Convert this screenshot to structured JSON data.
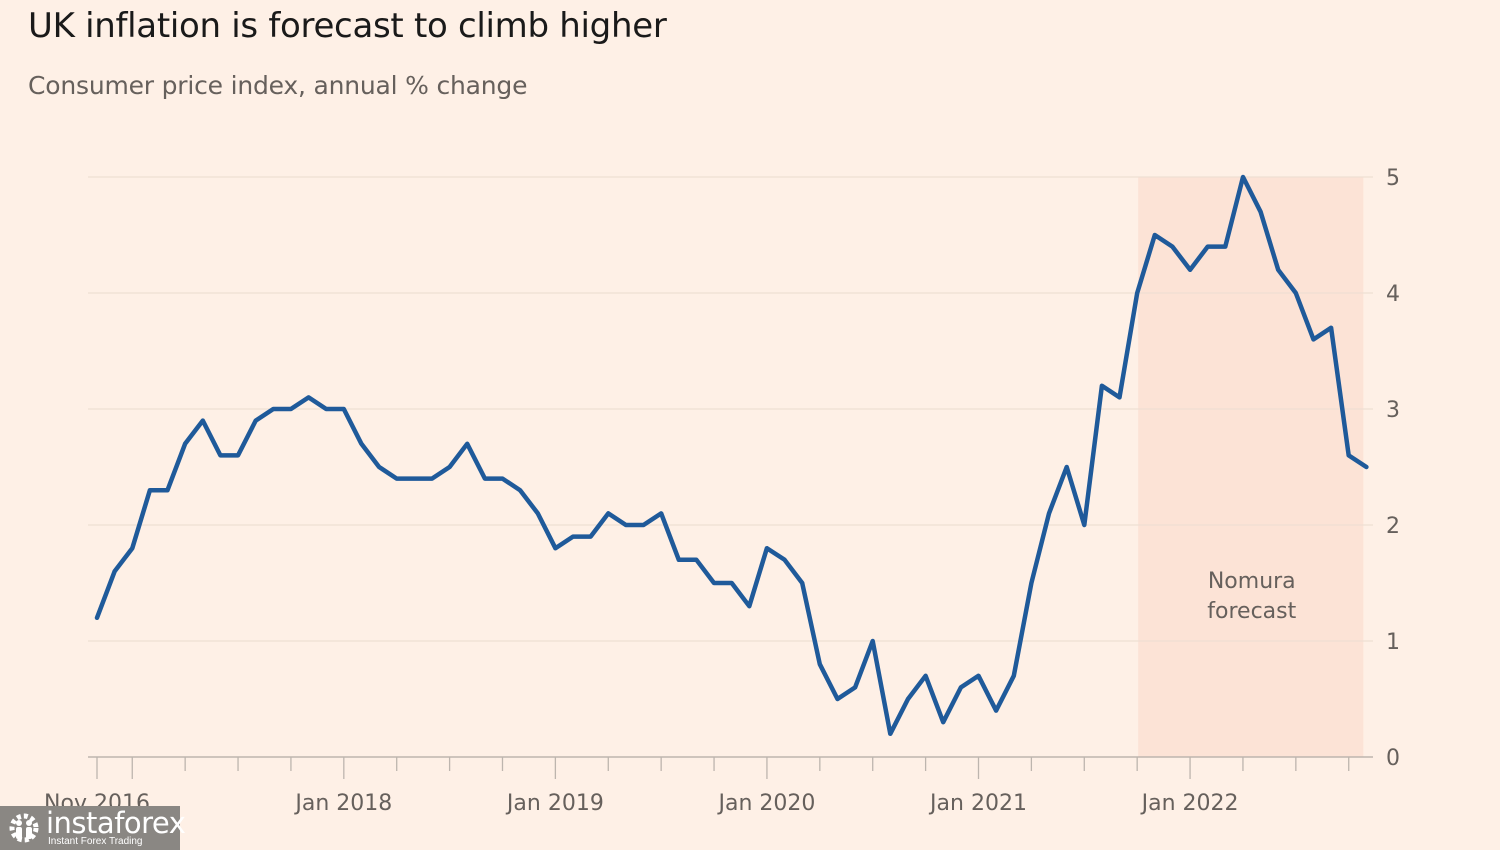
{
  "header": {
    "title": "UK inflation is forecast to climb higher",
    "subtitle": "Consumer price index, annual % change"
  },
  "watermark": {
    "brand": "instaforex",
    "tagline": "Instant Forex Trading"
  },
  "colors": {
    "background": "#FEF0E6",
    "forecast_shading": "#FCE3D6",
    "line": "#1F5A9A",
    "grid": "#EEDFD4",
    "axis": "#BDB5AE",
    "text": "#66605c"
  },
  "chart_data": {
    "type": "line",
    "title": "UK inflation is forecast to climb higher",
    "subtitle": "Consumer price index, annual % change",
    "xlabel": "",
    "ylabel": "",
    "ylim": [
      0,
      5
    ],
    "yticks": [
      0,
      1,
      2,
      3,
      4,
      5
    ],
    "y_axis_side": "right",
    "grid": true,
    "x_start": "Nov 2016",
    "x_end": "Nov 2022",
    "x_tick_interval_months": 3,
    "x_tick_labels": [
      {
        "label": "Nov 2016",
        "month_index": 0
      },
      {
        "label": "Jan 2018",
        "month_index": 14
      },
      {
        "label": "Jan 2019",
        "month_index": 26
      },
      {
        "label": "Jan 2020",
        "month_index": 38
      },
      {
        "label": "Jan 2021",
        "month_index": 50
      },
      {
        "label": "Jan 2022",
        "month_index": 62
      }
    ],
    "forecast_region": {
      "label_lines": [
        "Nomura",
        "forecast"
      ],
      "start_month_index": 59,
      "end_month_index": 72
    },
    "series": [
      {
        "name": "CPI annual % change",
        "start": "Nov 2016",
        "frequency": "monthly",
        "values": [
          1.2,
          1.6,
          1.8,
          2.3,
          2.3,
          2.7,
          2.9,
          2.6,
          2.6,
          2.9,
          3.0,
          3.0,
          3.1,
          3.0,
          3.0,
          2.7,
          2.5,
          2.4,
          2.4,
          2.4,
          2.5,
          2.7,
          2.4,
          2.4,
          2.3,
          2.1,
          1.8,
          1.9,
          1.9,
          2.1,
          2.0,
          2.0,
          2.1,
          1.7,
          1.7,
          1.5,
          1.5,
          1.3,
          1.8,
          1.7,
          1.5,
          0.8,
          0.5,
          0.6,
          1.0,
          0.2,
          0.5,
          0.7,
          0.3,
          0.6,
          0.7,
          0.4,
          0.7,
          1.5,
          2.1,
          2.5,
          2.0,
          3.2,
          3.1,
          4.0,
          4.5,
          4.4,
          4.2,
          4.4,
          4.4,
          5.0,
          4.7,
          4.2,
          4.0,
          3.6,
          3.7,
          2.6,
          2.5
        ]
      }
    ]
  }
}
